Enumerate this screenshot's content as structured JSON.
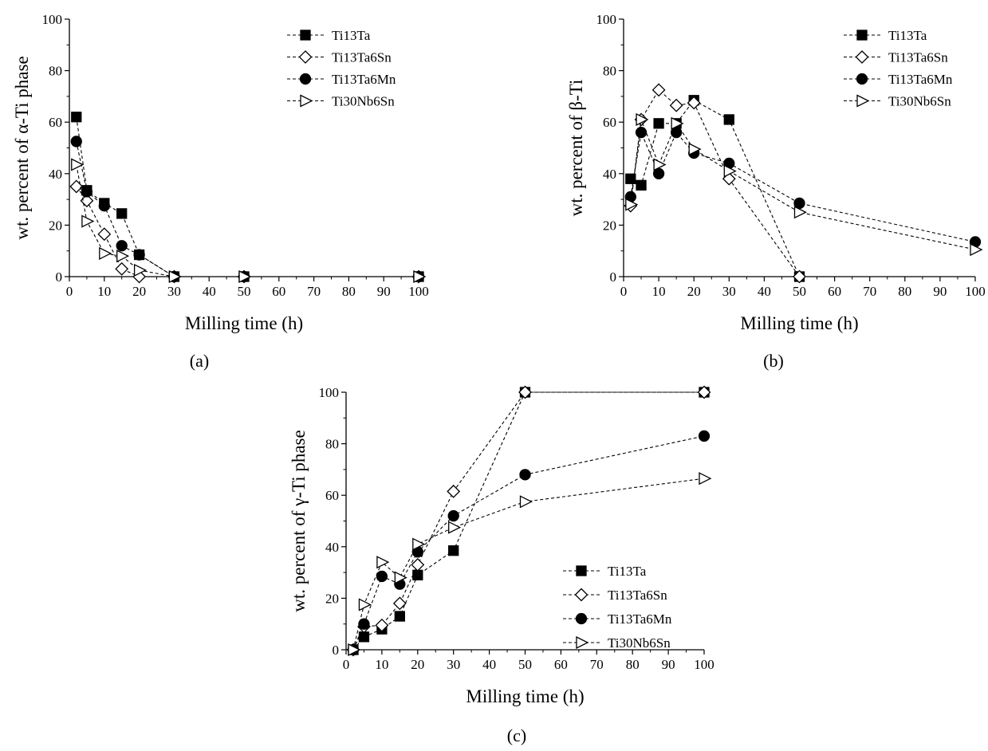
{
  "chart_data": [
    {
      "type": "line",
      "panel_label": "(a)",
      "xlabel": "Milling time (h)",
      "ylabel": "wt. percent of α-Ti phase",
      "xlim": [
        0,
        100
      ],
      "ylim": [
        0,
        100
      ],
      "xticks": [
        0,
        10,
        20,
        30,
        40,
        50,
        60,
        70,
        80,
        90,
        100
      ],
      "yticks": [
        0,
        20,
        40,
        60,
        80,
        100
      ],
      "legend_position": "top-right",
      "series": [
        {
          "name": "Ti13Ta",
          "marker": "square-filled",
          "x": [
            2,
            5,
            10,
            15,
            20,
            30,
            50,
            100
          ],
          "y": [
            62,
            33.5,
            28.5,
            24.5,
            8.5,
            0,
            0,
            0
          ]
        },
        {
          "name": "Ti13Ta6Sn",
          "marker": "diamond-open",
          "x": [
            2,
            5,
            10,
            15,
            20,
            30,
            50,
            100
          ],
          "y": [
            35,
            29.5,
            16.5,
            3,
            0,
            0,
            0,
            0
          ]
        },
        {
          "name": "Ti13Ta6Mn",
          "marker": "circle-filled",
          "x": [
            2,
            5,
            10,
            15,
            20,
            30,
            50,
            100
          ],
          "y": [
            52.5,
            33,
            27.5,
            12,
            8.5,
            0,
            0,
            0
          ]
        },
        {
          "name": "Ti30Nb6Sn",
          "marker": "triangle-right-open",
          "x": [
            2,
            5,
            10,
            15,
            20,
            30,
            50,
            100
          ],
          "y": [
            43.5,
            21.5,
            9,
            8,
            2.5,
            0,
            0,
            0
          ]
        }
      ]
    },
    {
      "type": "line",
      "panel_label": "(b)",
      "xlabel": "Milling time (h)",
      "ylabel": "wt. percent of β-Ti",
      "xlim": [
        0,
        100
      ],
      "ylim": [
        0,
        100
      ],
      "xticks": [
        0,
        10,
        20,
        30,
        40,
        50,
        60,
        70,
        80,
        90,
        100
      ],
      "yticks": [
        0,
        20,
        40,
        60,
        80,
        100
      ],
      "legend_position": "top-right",
      "series": [
        {
          "name": "Ti13Ta",
          "marker": "square-filled",
          "x": [
            2,
            5,
            10,
            15,
            20,
            30,
            50
          ],
          "y": [
            38,
            35.5,
            59.5,
            59.5,
            68.5,
            61,
            0
          ]
        },
        {
          "name": "Ti13Ta6Sn",
          "marker": "diamond-open",
          "x": [
            2,
            5,
            10,
            15,
            20,
            30,
            50
          ],
          "y": [
            27.5,
            61,
            72.5,
            66.5,
            67.5,
            38,
            0
          ]
        },
        {
          "name": "Ti13Ta6Mn",
          "marker": "circle-filled",
          "x": [
            2,
            5,
            10,
            15,
            20,
            30,
            50,
            100
          ],
          "y": [
            31,
            56,
            40,
            56,
            48,
            44,
            28.5,
            13.5
          ]
        },
        {
          "name": "Ti30Nb6Sn",
          "marker": "triangle-right-open",
          "x": [
            2,
            5,
            10,
            15,
            20,
            30,
            50,
            100
          ],
          "y": [
            28,
            61,
            43.5,
            59.5,
            49.5,
            41,
            25,
            10.5
          ]
        }
      ]
    },
    {
      "type": "line",
      "panel_label": "(c)",
      "xlabel": "Milling time (h)",
      "ylabel": "wt. percent of γ-Ti phase",
      "xlim": [
        0,
        100
      ],
      "ylim": [
        0,
        100
      ],
      "xticks": [
        0,
        10,
        20,
        30,
        40,
        50,
        60,
        70,
        80,
        90,
        100
      ],
      "yticks": [
        0,
        20,
        40,
        60,
        80,
        100
      ],
      "legend_position": "bottom-right",
      "series": [
        {
          "name": "Ti13Ta",
          "marker": "square-filled",
          "x": [
            2,
            5,
            10,
            15,
            20,
            30,
            50,
            100
          ],
          "y": [
            0,
            5,
            8,
            13,
            29,
            38.5,
            100,
            100
          ]
        },
        {
          "name": "Ti13Ta6Sn",
          "marker": "diamond-open",
          "x": [
            2,
            5,
            10,
            15,
            20,
            30,
            50,
            100
          ],
          "y": [
            0,
            9,
            9.5,
            18,
            33,
            61.5,
            100,
            100
          ]
        },
        {
          "name": "Ti13Ta6Mn",
          "marker": "circle-filled",
          "x": [
            2,
            5,
            10,
            15,
            20,
            30,
            50,
            100
          ],
          "y": [
            0,
            10,
            28.5,
            25.5,
            38,
            52,
            68,
            83
          ]
        },
        {
          "name": "Ti30Nb6Sn",
          "marker": "triangle-right-open",
          "x": [
            2,
            5,
            10,
            15,
            20,
            30,
            50,
            100
          ],
          "y": [
            0,
            17.5,
            34,
            28,
            41,
            47.5,
            57.5,
            66.5
          ]
        }
      ]
    }
  ]
}
